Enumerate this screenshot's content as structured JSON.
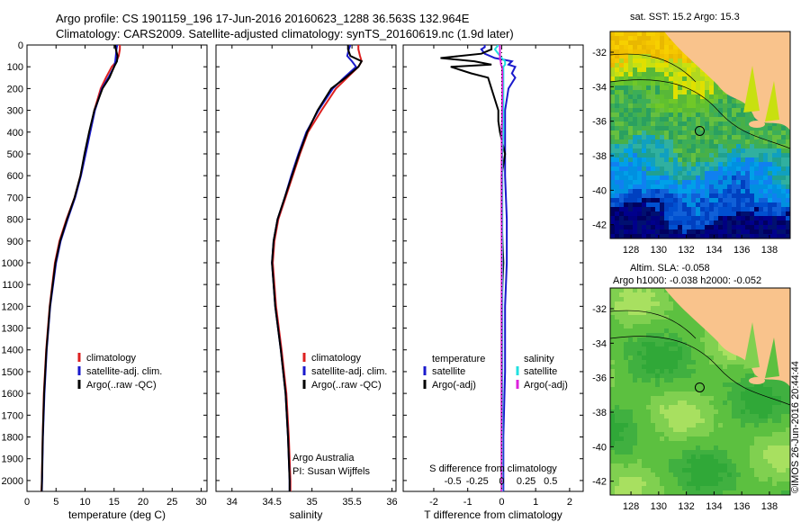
{
  "titles": {
    "line1": "Argo profile: CS 1901159_196 17-Jun-2016 20160623_1288 36.563S 132.964E",
    "line2": "Climatology: CARS2009. Satellite-adjusted climatology: synTS_20160619.nc (1.9d later)",
    "map1": "sat. SST: 15.2 Argo: 15.3",
    "map2a": "Altim. SLA: -0.058",
    "map2b": "Argo h1000: -0.038 h2000: -0.052",
    "stamp": "©IMOS 26-Jun-2016 20:44:44"
  },
  "colors": {
    "climatology": "#dd2020",
    "satellite": "#1a1acc",
    "argo": "#000000",
    "salinity_satellite": "#22e0e0",
    "salinity_argo": "#dd22dd",
    "land": "#f9c38c"
  },
  "chart_data": [
    {
      "type": "line",
      "panel": "temperature",
      "xlabel": "temperature (deg C)",
      "ylabel": "",
      "xlim": [
        0,
        31
      ],
      "ylim": [
        2050,
        0
      ],
      "xticks": [
        0,
        5,
        10,
        15,
        20,
        25,
        30
      ],
      "yticks": [
        0,
        100,
        200,
        300,
        400,
        500,
        600,
        700,
        800,
        900,
        1000,
        1100,
        1200,
        1300,
        1400,
        1500,
        1600,
        1700,
        1800,
        1900,
        2000
      ],
      "legend": [
        "climatology",
        "satellite-adj. clim.",
        "Argo(..raw -QC)"
      ],
      "depth": [
        0,
        5,
        20,
        50,
        75,
        100,
        150,
        200,
        300,
        400,
        500,
        600,
        700,
        800,
        900,
        1000,
        1200,
        1400,
        1600,
        1800,
        2000,
        2050
      ],
      "series": [
        {
          "name": "climatology",
          "values": [
            16.0,
            16.0,
            16.0,
            15.8,
            15.4,
            14.6,
            13.6,
            12.7,
            11.6,
            10.8,
            10.0,
            9.2,
            8.2,
            6.8,
            5.6,
            4.8,
            3.9,
            3.3,
            2.9,
            2.7,
            2.55,
            2.5
          ]
        },
        {
          "name": "satellite-adj. clim.",
          "values": [
            15.5,
            15.5,
            15.4,
            15.3,
            15.2,
            15.0,
            14.0,
            12.9,
            11.7,
            10.9,
            10.1,
            9.3,
            8.3,
            7.0,
            5.8,
            5.0,
            4.0,
            3.4,
            3.0,
            2.75,
            2.6,
            2.55
          ]
        },
        {
          "name": "Argo(..raw -QC)",
          "values": [
            15.2,
            15.2,
            15.3,
            15.6,
            15.5,
            15.0,
            14.2,
            13.0,
            11.6,
            10.7,
            9.9,
            9.2,
            8.2,
            6.9,
            5.7,
            4.9,
            3.95,
            3.35,
            2.95,
            2.72,
            2.58,
            2.52
          ]
        }
      ],
      "annotations": []
    },
    {
      "type": "line",
      "panel": "salinity",
      "xlabel": "salinity",
      "ylabel": "",
      "xlim": [
        33.8,
        36.05
      ],
      "ylim": [
        2050,
        0
      ],
      "xticks": [
        34,
        34.5,
        35,
        35.5,
        36
      ],
      "xticklabels": [
        "34",
        "34.5",
        "35",
        "35.5",
        "36"
      ],
      "legend": [
        "climatology",
        "satellite-adj. clim.",
        "Argo(..raw -QC)"
      ],
      "depth": [
        0,
        20,
        50,
        75,
        100,
        150,
        200,
        300,
        400,
        500,
        600,
        700,
        800,
        900,
        1000,
        1200,
        1400,
        1600,
        1800,
        2000,
        2050
      ],
      "series": [
        {
          "name": "climatology",
          "values": [
            35.58,
            35.58,
            35.6,
            35.62,
            35.58,
            35.44,
            35.3,
            35.12,
            34.95,
            34.85,
            34.76,
            34.67,
            34.58,
            34.53,
            34.51,
            34.55,
            34.62,
            34.68,
            34.71,
            34.73,
            34.73
          ]
        },
        {
          "name": "satellite-adj. clim.",
          "values": [
            35.48,
            35.46,
            35.44,
            35.5,
            35.55,
            35.4,
            35.26,
            35.08,
            34.93,
            34.83,
            34.74,
            34.66,
            34.57,
            34.52,
            34.5,
            34.54,
            34.61,
            34.67,
            34.7,
            34.72,
            34.72
          ]
        },
        {
          "name": "Argo(..raw -QC)",
          "values": [
            35.45,
            35.45,
            35.48,
            35.62,
            35.58,
            35.42,
            35.24,
            35.07,
            34.94,
            34.84,
            34.75,
            34.66,
            34.57,
            34.52,
            34.5,
            34.54,
            34.61,
            34.67,
            34.7,
            34.72,
            34.72
          ]
        }
      ],
      "annotations": [
        "Argo Australia",
        "PI: Susan Wijffels"
      ]
    },
    {
      "type": "line",
      "panel": "difference",
      "xlabel": "T difference from climatology",
      "toplabel": "S difference from climatology",
      "xlim": [
        -2.9,
        2.4
      ],
      "ylim": [
        2050,
        0
      ],
      "xticks": [
        -2,
        -1,
        0,
        1,
        2
      ],
      "s_tick_labels": [
        "-0.5",
        "-0.25",
        "0",
        "0.25",
        "0.5"
      ],
      "legend_headers": [
        "temperature",
        "salinity"
      ],
      "legend": [
        "satellite",
        "Argo(-adj)",
        "satellite",
        "Argo(-adj)"
      ],
      "depth": [
        0,
        10,
        20,
        40,
        60,
        75,
        90,
        100,
        130,
        150,
        200,
        300,
        350,
        400,
        500,
        600,
        800,
        1000,
        1200,
        1500,
        1800,
        2000,
        2050
      ],
      "series": [
        {
          "name": "temperature satellite",
          "values": [
            -0.5,
            -0.5,
            -0.6,
            -0.5,
            -0.2,
            0.3,
            0.2,
            0.4,
            0.3,
            0.4,
            0.2,
            0.1,
            0.1,
            0.1,
            0.1,
            0.1,
            0.15,
            0.15,
            0.1,
            0.1,
            0.05,
            0.05,
            0.05
          ]
        },
        {
          "name": "temperature Argo(-adj)",
          "values": [
            -0.3,
            -0.3,
            -0.3,
            -0.6,
            -1.8,
            -0.8,
            -0.3,
            -1.5,
            -0.9,
            -0.4,
            -0.3,
            -0.1,
            -0.1,
            -0.05,
            0.1,
            0.0,
            0.0,
            0.05,
            0.0,
            0.0,
            0.0,
            0.0,
            0.0
          ]
        },
        {
          "name": "salinity satellite",
          "values": [
            -0.1,
            -0.15,
            -0.2,
            -0.1,
            0.0,
            0.1,
            0.1,
            0.05,
            0.05,
            0.05,
            0.05,
            0.05,
            0.05,
            0.05,
            0.02,
            0.02,
            0.02,
            0.02,
            0.02,
            0.02,
            0.02,
            0.02,
            0.02
          ]
        },
        {
          "name": "salinity Argo(-adj)",
          "values": [
            -0.06,
            -0.05,
            -0.05,
            -0.05,
            -0.05,
            -0.03,
            -0.02,
            0.01,
            0.02,
            0.02,
            0.02,
            0.01,
            0.01,
            0.0,
            0.0,
            0.0,
            0.0,
            0.0,
            0.0,
            0.0,
            0.0,
            0.0,
            0.0
          ]
        }
      ]
    },
    {
      "type": "heatmap",
      "panel": "map-sst",
      "xticks": [
        128,
        130,
        132,
        134,
        136,
        138
      ],
      "yticks": [
        -32,
        -34,
        -36,
        -38,
        -40,
        -42
      ],
      "xlim": [
        126.5,
        139.5
      ],
      "ylim": [
        -42.8,
        -30.8
      ],
      "argo_position": [
        132.964,
        -36.563
      ]
    },
    {
      "type": "heatmap",
      "panel": "map-sla",
      "xticks": [
        128,
        130,
        132,
        134,
        136,
        138
      ],
      "yticks": [
        -32,
        -34,
        -36,
        -38,
        -40,
        -42
      ],
      "xlim": [
        126.5,
        139.5
      ],
      "ylim": [
        -42.8,
        -30.8
      ],
      "argo_position": [
        132.964,
        -36.563
      ]
    }
  ]
}
